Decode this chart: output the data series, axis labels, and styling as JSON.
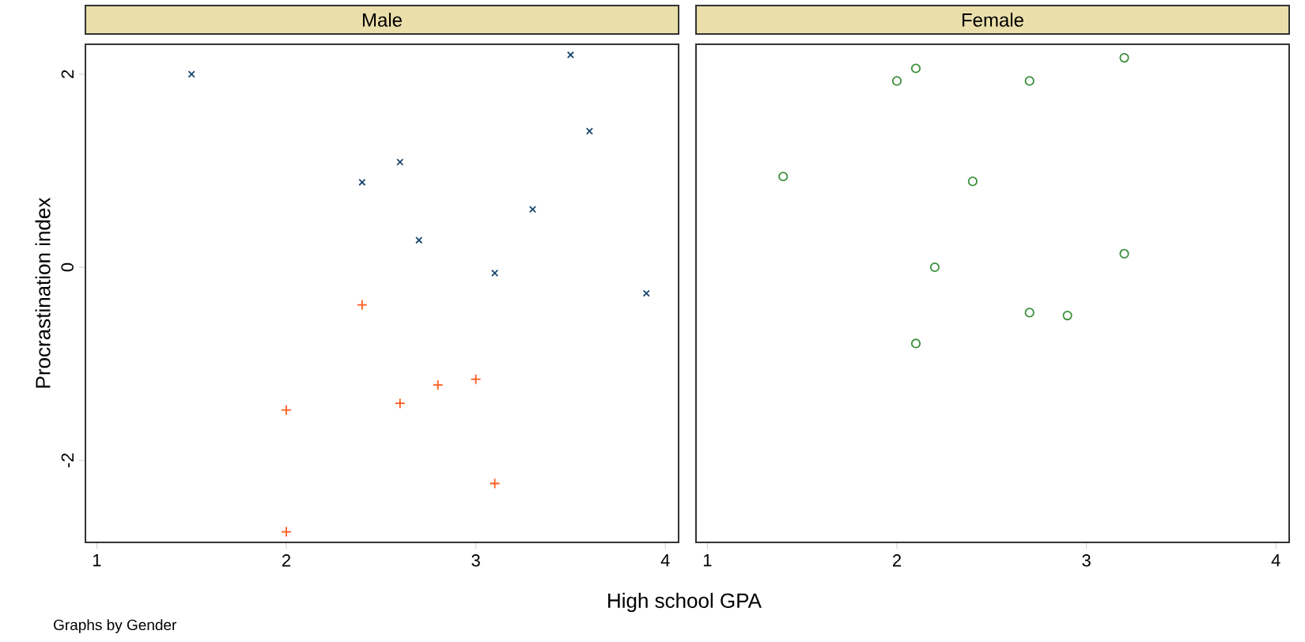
{
  "chart_data": [
    {
      "type": "scatter",
      "title": "Male",
      "xlabel": "High school GPA",
      "ylabel": "Procrastination index",
      "annotations": [
        "Graphs by Gender"
      ],
      "xlim": [
        0.94,
        4.07
      ],
      "ylim": [
        -2.85,
        2.31
      ],
      "xticks": [
        1,
        2,
        3,
        4
      ],
      "yticks": [
        -2,
        0,
        2
      ],
      "series": [
        {
          "color": "#1a476f",
          "marker": "cross",
          "x": [
            1.5,
            3.5,
            3.6,
            2.6,
            2.4,
            3.3,
            2.7,
            3.1,
            3.9
          ],
          "values": [
            2.0,
            2.2,
            1.41,
            1.09,
            0.88,
            0.6,
            0.28,
            -0.06,
            -0.27
          ]
        },
        {
          "color": "#ff5a1e",
          "marker": "plus",
          "x": [
            2.4,
            2.0,
            2.6,
            2.8,
            3.0,
            3.1,
            2.0
          ],
          "values": [
            -0.39,
            -1.48,
            -1.41,
            -1.22,
            -1.16,
            -2.24,
            -2.74
          ]
        }
      ]
    },
    {
      "type": "scatter",
      "title": "Female",
      "xlim": [
        0.94,
        4.07
      ],
      "ylim": [
        -2.85,
        2.31
      ],
      "xticks": [
        1,
        2,
        3,
        4
      ],
      "tick_labels": "x",
      "series": [
        {
          "color": "#3a8f3a",
          "marker": "circle",
          "x": [
            1.4,
            2.0,
            2.1,
            2.7,
            3.2,
            2.4,
            2.2,
            3.2,
            2.7,
            2.9,
            2.1
          ],
          "values": [
            0.94,
            1.93,
            2.06,
            1.93,
            2.17,
            0.89,
            0.0,
            0.14,
            -0.47,
            -0.5,
            -0.79
          ]
        }
      ]
    }
  ]
}
